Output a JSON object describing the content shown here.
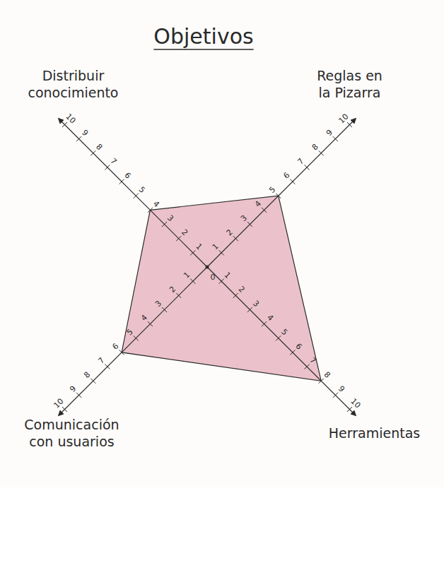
{
  "chart_data": {
    "type": "radar",
    "title": "Objetivos",
    "categories": [
      "Distribuir conocimiento",
      "Reglas en la Pizarra",
      "Herramientas",
      "Comunicación con usuarios"
    ],
    "values": [
      4,
      5,
      8,
      6
    ],
    "color": "#e8b7c2",
    "ylim": [
      0,
      10
    ],
    "yticks": [
      0,
      1,
      2,
      3,
      4,
      5,
      6,
      7,
      8,
      9,
      10
    ]
  }
}
